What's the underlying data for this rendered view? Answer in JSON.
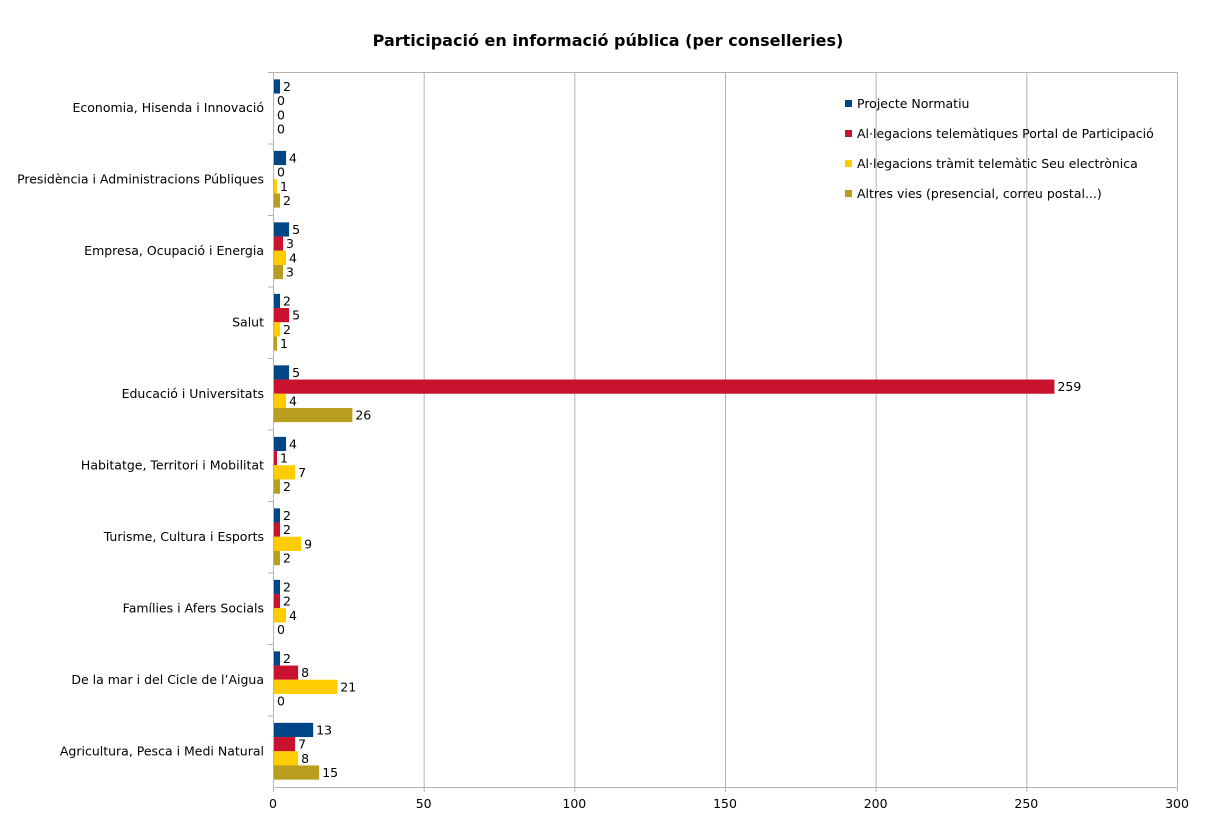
{
  "chart_data": {
    "type": "bar",
    "orientation": "horizontal",
    "title": "Participació en informació pública (per conselleries)",
    "categories": [
      "Economia, Hisenda i Innovació",
      "Presidència i Administracions Públiques",
      "Empresa, Ocupació i Energia",
      "Salut",
      "Educació i Universitats",
      "Habitatge, Territori i Mobilitat",
      "Turisme, Cultura i Esports",
      "Famílies i Afers Socials",
      "De la mar i del Cicle de l’Aigua",
      "Agricultura, Pesca i Medi Natural"
    ],
    "series": [
      {
        "name": "Projecte Normatiu",
        "color": "#004586",
        "values": [
          2,
          4,
          5,
          2,
          5,
          4,
          2,
          2,
          2,
          13
        ]
      },
      {
        "name": "Al·legacions telemàtiques  Portal de Participació",
        "color": "#c9132e",
        "values": [
          0,
          0,
          3,
          5,
          259,
          1,
          2,
          2,
          8,
          7
        ]
      },
      {
        "name": "Al·legacions  tràmit telemàtic Seu electrònica",
        "color": "#ffcc00",
        "values": [
          0,
          1,
          4,
          2,
          4,
          7,
          9,
          4,
          21,
          8
        ]
      },
      {
        "name": "Altres vies (presencial, correu postal...)",
        "color": "#b89d1f",
        "values": [
          0,
          2,
          3,
          1,
          26,
          2,
          2,
          0,
          0,
          15
        ]
      }
    ],
    "xlim": [
      0,
      300
    ],
    "xticks": [
      0,
      50,
      100,
      150,
      200,
      250,
      300
    ],
    "grid": true,
    "legend_position": "top-right"
  }
}
